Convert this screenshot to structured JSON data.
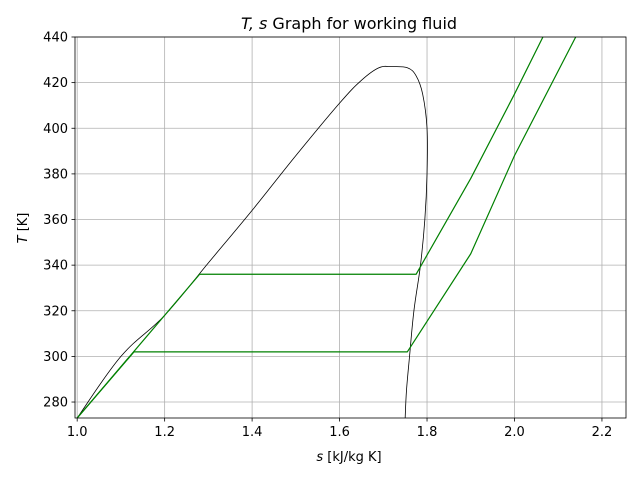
{
  "chart_data": {
    "type": "line",
    "title": "T, s Graph for working fluid",
    "title_parts": {
      "math": "T, s",
      "text": " Graph for working fluid"
    },
    "xlabel": "s [kJ/kg K]",
    "xlabel_parts": {
      "math": "s",
      "text": " [kJ/kg K]"
    },
    "ylabel": "T [K]",
    "ylabel_parts": {
      "math": "T",
      "text": " [K]"
    },
    "xlim": [
      0.995,
      2.255
    ],
    "ylim": [
      273,
      440
    ],
    "xticks": [
      1.0,
      1.2,
      1.4,
      1.6,
      1.8,
      2.0,
      2.2
    ],
    "xtick_labels": [
      "1.0",
      "1.2",
      "1.4",
      "1.6",
      "1.8",
      "2.0",
      "2.2"
    ],
    "yticks": [
      280,
      300,
      320,
      340,
      360,
      380,
      400,
      420,
      440
    ],
    "ytick_labels": [
      "280",
      "300",
      "320",
      "340",
      "360",
      "380",
      "400",
      "420",
      "440"
    ],
    "grid": true,
    "colors": {
      "saturation_dome": "#000000",
      "isobar": "#008000",
      "grid": "#b0b0b0",
      "axes": "#000000"
    },
    "series": [
      {
        "color": "#000000",
        "width": 0.8,
        "x": [
          1.0,
          1.1,
          1.2,
          1.3,
          1.4,
          1.5,
          1.6,
          1.65,
          1.69,
          1.72,
          1.755,
          1.775,
          1.79,
          1.8,
          1.8,
          1.795,
          1.785,
          1.77,
          1.76,
          1.753,
          1.75
        ],
        "y": [
          273,
          300,
          318,
          341,
          364,
          388,
          411,
          421,
          426.5,
          427,
          426.5,
          423,
          415,
          400,
          380,
          360,
          340,
          320,
          300,
          285,
          273
        ]
      },
      {
        "color": "#008000",
        "width": 1.2,
        "x": [
          1.0,
          1.28,
          1.775,
          1.9,
          2.0,
          2.065
        ],
        "y": [
          273,
          336,
          336,
          378,
          415,
          440
        ]
      },
      {
        "color": "#008000",
        "width": 1.2,
        "x": [
          1.0,
          1.13,
          1.755,
          1.9,
          2.0,
          2.14
        ],
        "y": [
          273,
          302,
          302,
          345,
          388,
          440
        ]
      }
    ]
  }
}
